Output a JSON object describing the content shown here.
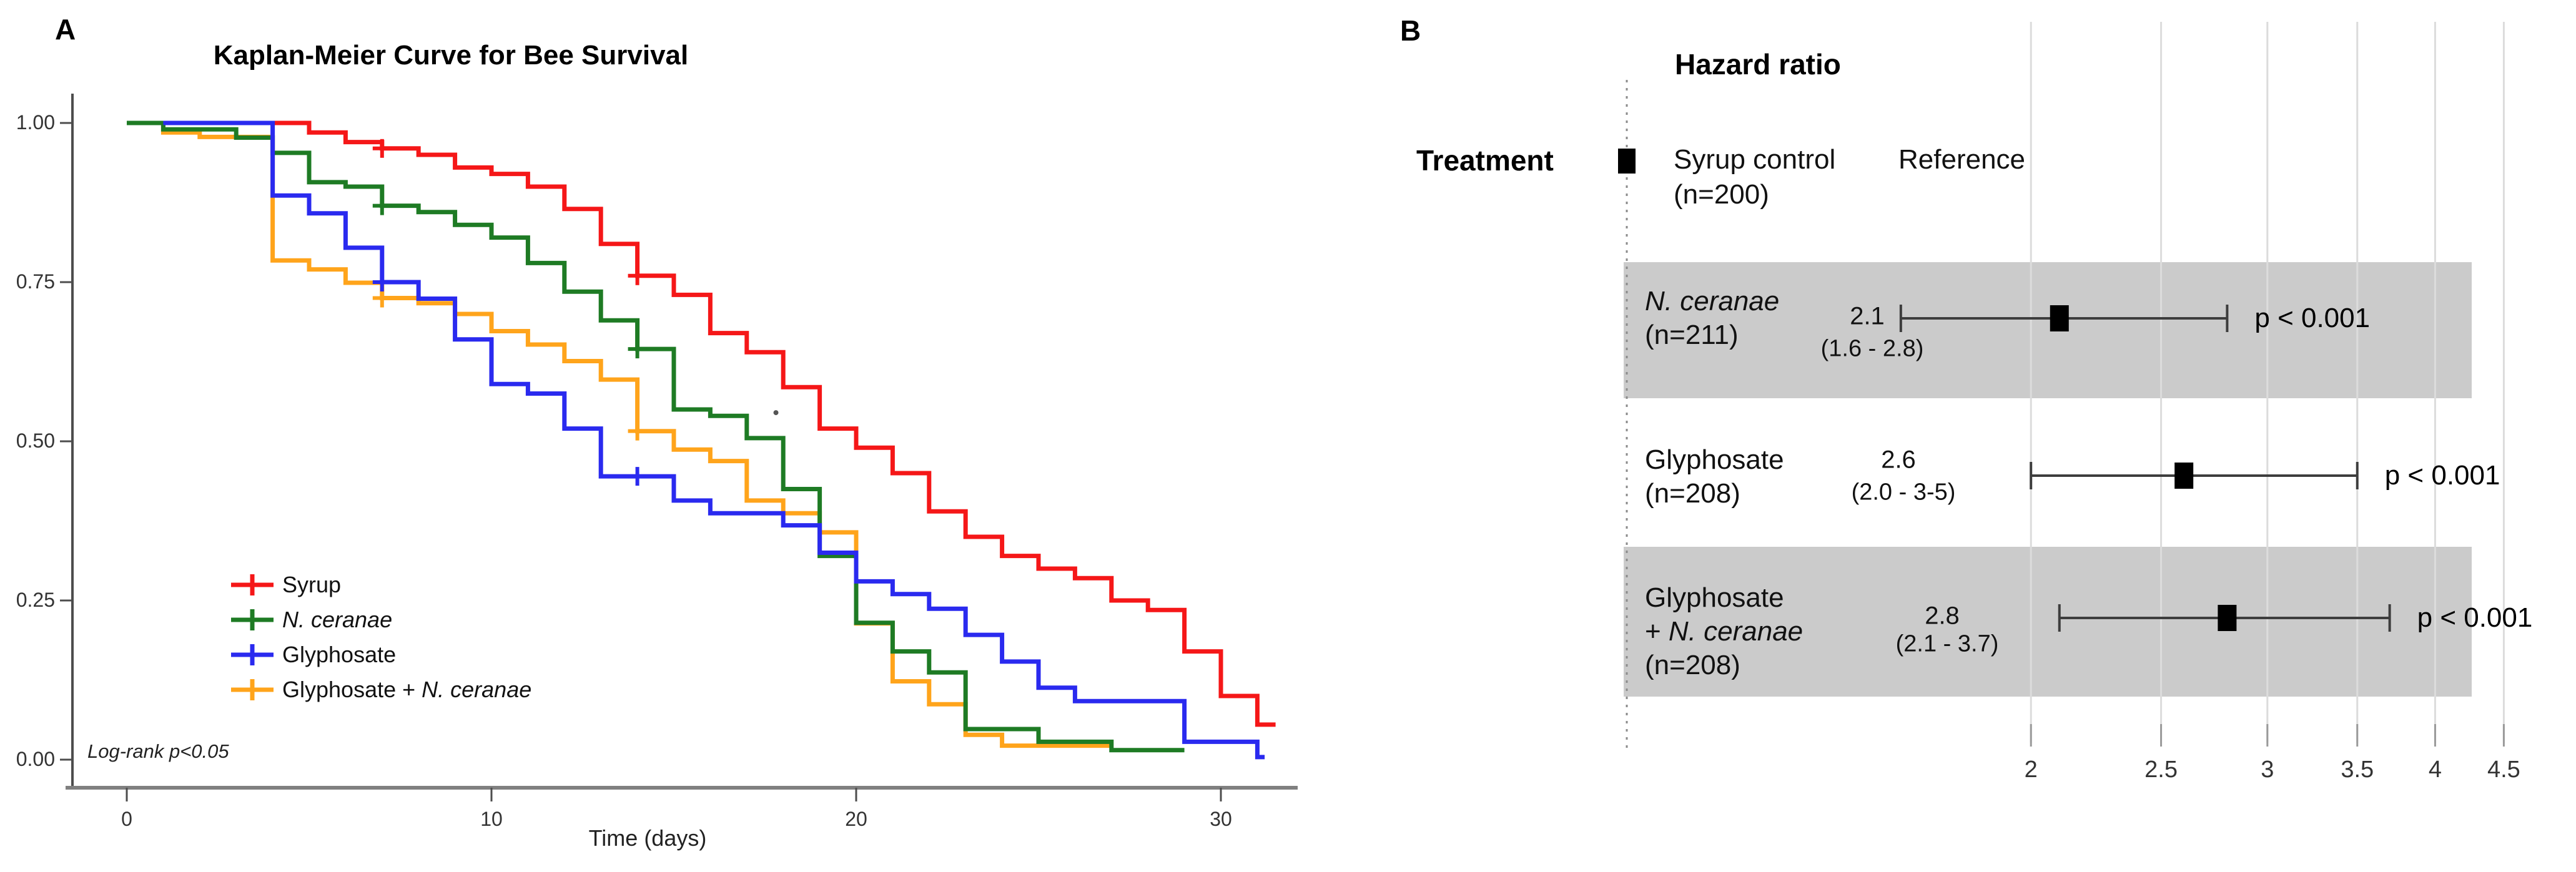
{
  "figure": {
    "panel_a_label": "A",
    "panel_b_label": "B"
  },
  "panel_a": {
    "title": "Kaplan-Meier Curve for Bee Survival",
    "x_label": "Time (days)",
    "annotation": "Log-rank p<0.05",
    "y_ticks": [
      "1.00",
      "0.75",
      "0.50",
      "0.25",
      "0.00"
    ],
    "x_ticks": [
      "0",
      "10",
      "20",
      "30"
    ],
    "legend": [
      {
        "name": "syrup",
        "color": "#F51718",
        "parts": [
          {
            "t": "Syrup",
            "i": false
          }
        ]
      },
      {
        "name": "n-ceranae",
        "color": "#1E7B24",
        "parts": [
          {
            "t": "N. ceranae",
            "i": true
          }
        ]
      },
      {
        "name": "glyphosate",
        "color": "#2A2AEF",
        "parts": [
          {
            "t": "Glyphosate",
            "i": false
          }
        ]
      },
      {
        "name": "glyphosate-n-ceranae",
        "color": "#FFA41B",
        "parts": [
          {
            "t": "Glyphosate + ",
            "i": false
          },
          {
            "t": "N. ceranae",
            "i": true
          }
        ]
      }
    ],
    "chart_data": {
      "type": "line",
      "subtype": "kaplan-meier-step",
      "title": "Kaplan-Meier Curve for Bee Survival",
      "xlabel": "Time (days)",
      "ylabel": "",
      "xlim": [
        0,
        31.8
      ],
      "ylim": [
        0,
        1
      ],
      "x_tick_values": [
        0,
        10,
        20,
        30
      ],
      "y_tick_values": [
        1.0,
        0.75,
        0.5,
        0.25,
        0.0
      ],
      "grid": false,
      "legend_position": "inside-left",
      "annotation": "Log-rank p<0.05",
      "series": [
        {
          "name": "Syrup",
          "color": "#F51718",
          "end": 31.5,
          "steps": [
            [
              0,
              1
            ],
            [
              5,
              0.985
            ],
            [
              6,
              0.97
            ],
            [
              7,
              0.96
            ],
            [
              8,
              0.95
            ],
            [
              9,
              0.93
            ],
            [
              10,
              0.92
            ],
            [
              11,
              0.9
            ],
            [
              12,
              0.865
            ],
            [
              13,
              0.81
            ],
            [
              14,
              0.76
            ],
            [
              15,
              0.73
            ],
            [
              16,
              0.67
            ],
            [
              17,
              0.64
            ],
            [
              18,
              0.585
            ],
            [
              19,
              0.52
            ],
            [
              20,
              0.49
            ],
            [
              21,
              0.45
            ],
            [
              22,
              0.39
            ],
            [
              23,
              0.35
            ],
            [
              24,
              0.32
            ],
            [
              25,
              0.3
            ],
            [
              26,
              0.285
            ],
            [
              27,
              0.25
            ],
            [
              28,
              0.235
            ],
            [
              29,
              0.17
            ],
            [
              30,
              0.1
            ],
            [
              31,
              0.055
            ]
          ],
          "censors": [
            [
              7,
              0.96
            ],
            [
              14,
              0.76
            ]
          ]
        },
        {
          "name": "N. ceranae",
          "color": "#1E7B24",
          "end": 29,
          "steps": [
            [
              0,
              1
            ],
            [
              1,
              0.99
            ],
            [
              3,
              0.977
            ],
            [
              4,
              0.953
            ],
            [
              5,
              0.907
            ],
            [
              6,
              0.9
            ],
            [
              7,
              0.87
            ],
            [
              8,
              0.86
            ],
            [
              9,
              0.84
            ],
            [
              10,
              0.82
            ],
            [
              11,
              0.78
            ],
            [
              12,
              0.735
            ],
            [
              13,
              0.69
            ],
            [
              14,
              0.645
            ],
            [
              15,
              0.55
            ],
            [
              16,
              0.54
            ],
            [
              17,
              0.505
            ],
            [
              18,
              0.425
            ],
            [
              19,
              0.32
            ],
            [
              20,
              0.215
            ],
            [
              21,
              0.17
            ],
            [
              22,
              0.137
            ],
            [
              23,
              0.048
            ],
            [
              25,
              0.028
            ],
            [
              27,
              0.015
            ]
          ],
          "censors": [
            [
              7,
              0.87
            ],
            [
              14,
              0.645
            ]
          ]
        },
        {
          "name": "Glyphosate",
          "color": "#2A2AEF",
          "end": 31.2,
          "steps": [
            [
              1,
              1
            ],
            [
              4,
              0.886
            ],
            [
              5,
              0.858
            ],
            [
              6,
              0.804
            ],
            [
              7,
              0.75
            ],
            [
              8,
              0.724
            ],
            [
              9,
              0.66
            ],
            [
              10,
              0.59
            ],
            [
              11,
              0.575
            ],
            [
              12,
              0.52
            ],
            [
              13,
              0.445
            ],
            [
              15,
              0.407
            ],
            [
              16,
              0.387
            ],
            [
              18,
              0.368
            ],
            [
              19,
              0.325
            ],
            [
              20,
              0.28
            ],
            [
              21,
              0.26
            ],
            [
              22,
              0.237
            ],
            [
              23,
              0.196
            ],
            [
              24,
              0.154
            ],
            [
              25,
              0.113
            ],
            [
              26,
              0.092
            ],
            [
              29,
              0.028
            ],
            [
              31,
              0.004
            ]
          ],
          "censors": [
            [
              7,
              0.75
            ],
            [
              14,
              0.445
            ]
          ]
        },
        {
          "name": "Glyphosate + N. ceranae",
          "color": "#FFA41B",
          "end": 27,
          "steps": [
            [
              0,
              1
            ],
            [
              1,
              0.985
            ],
            [
              2,
              0.978
            ],
            [
              4,
              0.784
            ],
            [
              5,
              0.77
            ],
            [
              6,
              0.749
            ],
            [
              7,
              0.725
            ],
            [
              8,
              0.717
            ],
            [
              9,
              0.7
            ],
            [
              10,
              0.673
            ],
            [
              11,
              0.652
            ],
            [
              12,
              0.626
            ],
            [
              13,
              0.597
            ],
            [
              14,
              0.516
            ],
            [
              15,
              0.487
            ],
            [
              16,
              0.469
            ],
            [
              17,
              0.407
            ],
            [
              18,
              0.387
            ],
            [
              19,
              0.357
            ],
            [
              20,
              0.214
            ],
            [
              21,
              0.123
            ],
            [
              22,
              0.087
            ],
            [
              23,
              0.039
            ],
            [
              24,
              0.022
            ]
          ],
          "censors": [
            [
              7,
              0.725
            ],
            [
              14,
              0.516
            ]
          ]
        }
      ],
      "stray_point": {
        "x": 17.8,
        "y": 0.545,
        "color": "#555555"
      }
    }
  },
  "panel_b": {
    "title": "Hazard ratio",
    "column_header": "Treatment",
    "reference_row": {
      "treatment_lines": [
        "Syrup control",
        "(n=200)"
      ],
      "value_label": "Reference"
    },
    "axis_ticks": [
      "2",
      "2.5",
      "3",
      "3.5",
      "4",
      "4.5"
    ],
    "chart_data": {
      "type": "forest",
      "x_scale": "log",
      "x_tick_values": [
        2,
        2.5,
        3,
        3.5,
        4,
        4.5
      ],
      "reference_line_hr": 1.0,
      "band_color": "#CBCBCB",
      "marker_color": "#000000",
      "rows": [
        {
          "lines": [
            [
              {
                "t": "N. ceranae",
                "i": true
              }
            ],
            [
              {
                "t": "(n=211)",
                "i": false
              }
            ]
          ],
          "estimate": "2.1",
          "ci": "(1.6 - 2.8)",
          "hr": 2.1,
          "lo": 1.6,
          "hi": 2.8,
          "p": "p < 0.001",
          "shaded": true
        },
        {
          "lines": [
            [
              {
                "t": "Glyphosate",
                "i": false
              }
            ],
            [
              {
                "t": "(n=208)",
                "i": false
              }
            ]
          ],
          "estimate": "2.6",
          "ci": "(2.0 - 3-5)",
          "hr": 2.6,
          "lo": 2.0,
          "hi": 3.5,
          "p": "p < 0.001",
          "shaded": false
        },
        {
          "lines": [
            [
              {
                "t": "Glyphosate",
                "i": false
              }
            ],
            [
              {
                "t": "+ ",
                "i": false
              },
              {
                "t": "N. ceranae",
                "i": true
              }
            ],
            [
              {
                "t": "(n=208)",
                "i": false
              }
            ]
          ],
          "estimate": "2.8",
          "ci": "(2.1 - 3.7)",
          "hr": 2.8,
          "lo": 2.1,
          "hi": 3.7,
          "p": "p < 0.001",
          "shaded": true
        }
      ]
    }
  }
}
